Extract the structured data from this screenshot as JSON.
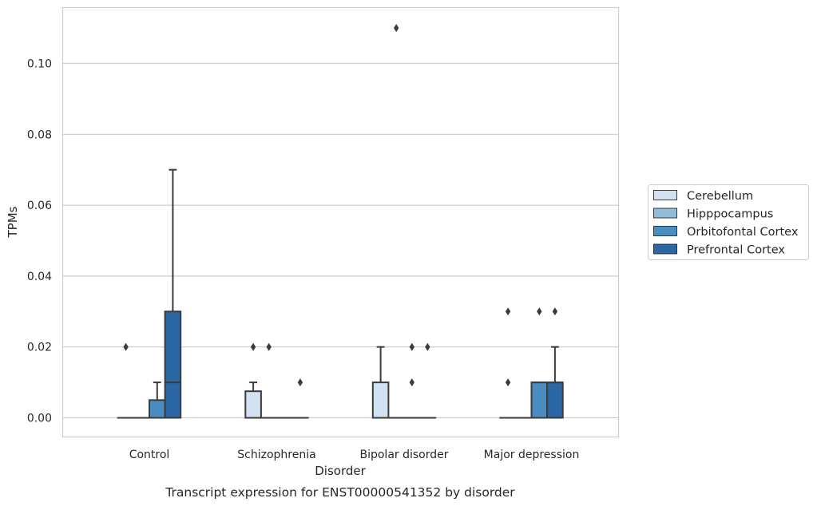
{
  "chart_data": {
    "type": "boxplot",
    "caption": "Transcript expression for ENST00000541352 by disorder",
    "xlabel": "Disorder",
    "ylabel": "TPMs",
    "ylim": [
      -0.0053,
      0.1163
    ],
    "yticks": [
      0.0,
      0.02,
      0.04,
      0.06,
      0.08,
      0.1
    ],
    "ytick_labels": [
      "0.00",
      "0.02",
      "0.04",
      "0.06",
      "0.08",
      "0.10"
    ],
    "grid": "horizontal",
    "legend_position": "right",
    "categories": [
      "Control",
      "Schizophrenia",
      "Bipolar disorder",
      "Major depression"
    ],
    "series": [
      {
        "name": "Cerebellum",
        "color": "#d1e1f0",
        "boxes": [
          {
            "q1": 0,
            "median": 0,
            "q3": 0,
            "whislo": 0,
            "whishi": 0,
            "fliers": [
              0.02
            ]
          },
          {
            "q1": 0,
            "median": 0,
            "q3": 0.0075,
            "whislo": 0,
            "whishi": 0.01,
            "fliers": [
              0.02
            ]
          },
          {
            "q1": 0,
            "median": 0,
            "q3": 0.01,
            "whislo": 0,
            "whishi": 0.02,
            "fliers": []
          },
          {
            "q1": 0,
            "median": 0,
            "q3": 0,
            "whislo": 0,
            "whishi": 0,
            "fliers": [
              0.01,
              0.03
            ]
          }
        ]
      },
      {
        "name": "Hipppocampus",
        "color": "#93bcdb",
        "boxes": [
          {
            "q1": 0,
            "median": 0,
            "q3": 0,
            "whislo": 0,
            "whishi": 0,
            "fliers": []
          },
          {
            "q1": 0,
            "median": 0,
            "q3": 0,
            "whislo": 0,
            "whishi": 0,
            "fliers": [
              0.02
            ]
          },
          {
            "q1": 0,
            "median": 0,
            "q3": 0,
            "whislo": 0,
            "whishi": 0,
            "fliers": [
              0.11
            ]
          },
          {
            "q1": 0,
            "median": 0,
            "q3": 0,
            "whislo": 0,
            "whishi": 0,
            "fliers": []
          }
        ]
      },
      {
        "name": "Orbitofontal Cortex",
        "color": "#4a8ec1",
        "boxes": [
          {
            "q1": 0,
            "median": 0,
            "q3": 0.005,
            "whislo": 0,
            "whishi": 0.01,
            "fliers": []
          },
          {
            "q1": 0,
            "median": 0,
            "q3": 0,
            "whislo": 0,
            "whishi": 0,
            "fliers": []
          },
          {
            "q1": 0,
            "median": 0,
            "q3": 0,
            "whislo": 0,
            "whishi": 0,
            "fliers": [
              0.01,
              0.02
            ]
          },
          {
            "q1": 0,
            "median": 0.01,
            "q3": 0.01,
            "whislo": 0,
            "whishi": 0.01,
            "fliers": [
              0.03
            ]
          }
        ]
      },
      {
        "name": "Prefrontal Cortex",
        "color": "#2b66a5",
        "boxes": [
          {
            "q1": 0,
            "median": 0.01,
            "q3": 0.03,
            "whislo": 0,
            "whishi": 0.07,
            "fliers": []
          },
          {
            "q1": 0,
            "median": 0,
            "q3": 0,
            "whislo": 0,
            "whishi": 0,
            "fliers": [
              0.01
            ]
          },
          {
            "q1": 0,
            "median": 0,
            "q3": 0,
            "whislo": 0,
            "whishi": 0,
            "fliers": [
              0.02
            ]
          },
          {
            "q1": 0,
            "median": 0.01,
            "q3": 0.01,
            "whislo": 0,
            "whishi": 0.02,
            "fliers": [
              0.03
            ]
          }
        ]
      }
    ]
  }
}
